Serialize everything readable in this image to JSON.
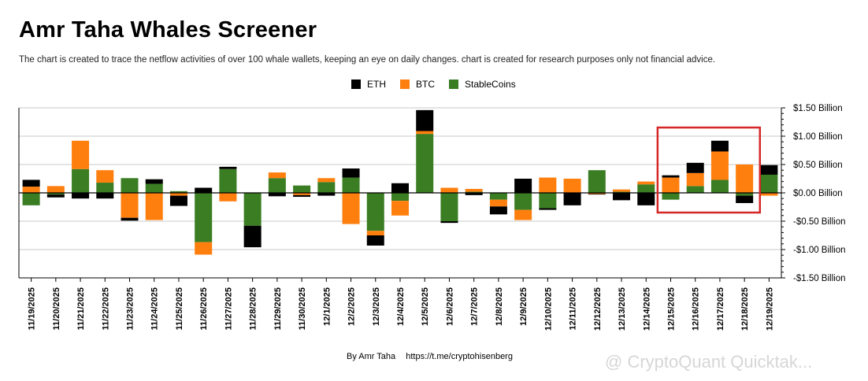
{
  "title": "Amr Taha Whales Screener",
  "subtitle": "The chart is created to trace the netflow activities of over 100 whale wallets, keeping an eye on daily changes.  chart is created for research purposes only not financial advice.",
  "credit": {
    "author": "By Amr Taha",
    "link": "https://t.me/cryptohisenberg"
  },
  "watermark": "@ CryptoQuant Quicktak...",
  "colors": {
    "ETH": "#000000",
    "BTC": "#ff7f0e",
    "StableCoins": "#3a7d22",
    "highlight": "#d62728",
    "grid": "#c8c8c8"
  },
  "chart_data": {
    "type": "bar",
    "stacked": true,
    "categories": [
      "11/19/2025",
      "11/20/2025",
      "11/21/2025",
      "11/22/2025",
      "11/23/2025",
      "11/24/2025",
      "11/25/2025",
      "11/26/2025",
      "11/27/2025",
      "11/28/2025",
      "11/29/2025",
      "11/30/2025",
      "12/1/2025",
      "12/2/2025",
      "12/3/2025",
      "12/4/2025",
      "12/5/2025",
      "12/6/2025",
      "12/7/2025",
      "12/8/2025",
      "12/9/2025",
      "12/10/2025",
      "12/11/2025",
      "12/12/2025",
      "12/13/2025",
      "12/14/2025",
      "12/15/2025",
      "12/16/2025",
      "12/17/2025",
      "12/18/2025",
      "12/19/2025"
    ],
    "series": [
      {
        "name": "StableCoins",
        "values": [
          -0.22,
          -0.03,
          0.42,
          0.18,
          0.26,
          0.16,
          0.03,
          -0.87,
          0.42,
          -0.58,
          0.26,
          0.13,
          0.19,
          0.27,
          -0.67,
          -0.14,
          1.04,
          -0.5,
          0.02,
          -0.12,
          -0.3,
          -0.27,
          0.0,
          0.4,
          0.02,
          0.15,
          -0.12,
          0.12,
          0.23,
          -0.05,
          0.32
        ]
      },
      {
        "name": "BTC",
        "values": [
          0.11,
          0.12,
          0.5,
          0.22,
          -0.44,
          -0.48,
          -0.05,
          -0.22,
          -0.15,
          0.0,
          0.1,
          -0.04,
          0.07,
          -0.55,
          -0.08,
          -0.26,
          0.05,
          0.09,
          0.05,
          -0.12,
          -0.18,
          0.27,
          0.25,
          -0.02,
          0.04,
          0.05,
          0.27,
          0.23,
          0.5,
          0.5,
          -0.05
        ]
      },
      {
        "name": "ETH",
        "values": [
          0.12,
          -0.05,
          -0.1,
          -0.1,
          -0.05,
          0.08,
          -0.18,
          0.09,
          0.04,
          -0.38,
          -0.06,
          -0.03,
          -0.05,
          0.16,
          -0.18,
          0.17,
          0.37,
          -0.03,
          -0.04,
          -0.14,
          0.25,
          -0.03,
          -0.22,
          -0.01,
          -0.13,
          -0.22,
          0.04,
          0.18,
          0.19,
          -0.13,
          0.17
        ]
      }
    ],
    "legend": [
      "ETH",
      "BTC",
      "StableCoins"
    ],
    "legend_position": "top-center",
    "y_ticks": [
      "$1.50 Billion",
      "$1.00 Billion",
      "$0.50 Billion",
      "$0.00 Billion",
      "-$0.50 Billion",
      "-$1.00 Billion",
      "-$1.50 Billion"
    ],
    "y_tick_values": [
      1.5,
      1.0,
      0.5,
      0.0,
      -0.5,
      -1.0,
      -1.5
    ],
    "ylim": [
      -1.5,
      1.5
    ],
    "y_axis_side": "right",
    "grid": true,
    "highlight_range": [
      "12/15/2025",
      "12/18/2025"
    ]
  }
}
